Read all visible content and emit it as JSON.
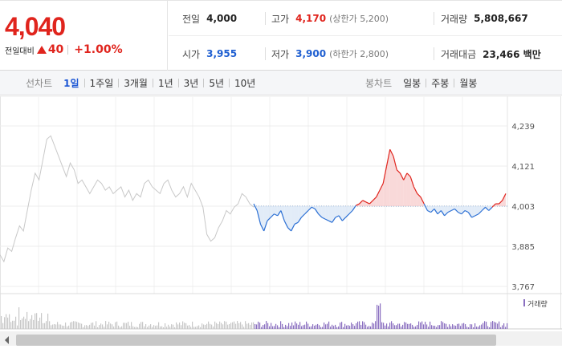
{
  "header": {
    "price": "4,040",
    "change_label": "전일대비",
    "change_value": "40",
    "change_pct": "+1.00%"
  },
  "stats": {
    "prev_close": {
      "label": "전일",
      "value": "4,000"
    },
    "high": {
      "label": "고가",
      "value": "4,170",
      "sub": "(상한가 5,200)"
    },
    "volume": {
      "label": "거래량",
      "value": "5,808,667"
    },
    "open": {
      "label": "시가",
      "value": "3,955"
    },
    "low": {
      "label": "저가",
      "value": "3,900",
      "sub": "(하한가 2,800)"
    },
    "trade_value": {
      "label": "거래대금",
      "value": "23,466 백만"
    }
  },
  "toolbar": {
    "line_chart_title": "선차트",
    "periods": [
      "1일",
      "1주일",
      "3개월",
      "1년",
      "3년",
      "5년",
      "10년"
    ],
    "active_period": "1일",
    "candle_chart_title": "봉차트",
    "candles": [
      "일봉",
      "주봉",
      "월봉"
    ]
  },
  "chart": {
    "y_ticks": [
      "4,239",
      "4,121",
      "4,003",
      "3,885",
      "3,767"
    ],
    "volume_legend": "거래량",
    "colors": {
      "up": "#e0241d",
      "down": "#2b6fd4",
      "prev": "#c8c8c8",
      "volume": "#8a6fc0",
      "baseline": "#7a9cc7"
    }
  },
  "chart_data": {
    "type": "line",
    "title": "",
    "ylim": [
      3767,
      4239
    ],
    "y_ticks": [
      4239,
      4121,
      4003,
      3885,
      3767
    ],
    "baseline": 4003,
    "previous_day": [
      3860,
      3840,
      3880,
      3870,
      3910,
      3945,
      3930,
      3990,
      4050,
      4100,
      4080,
      4140,
      4200,
      4210,
      4180,
      4150,
      4120,
      4090,
      4130,
      4110,
      4070,
      4080,
      4060,
      4040,
      4060,
      4080,
      4070,
      4050,
      4060,
      4040,
      4050,
      4060,
      4030,
      4050,
      4020,
      4040,
      4030,
      4070,
      4080,
      4060,
      4050,
      4040,
      4070,
      4080,
      4050,
      4030,
      4040,
      4060,
      4030,
      4070,
      4050,
      4030,
      4000,
      3920,
      3900,
      3910,
      3940,
      3960,
      3990,
      3980,
      4000,
      4010,
      4040,
      4030,
      4010,
      4000
    ],
    "today": [
      4010,
      3990,
      3950,
      3930,
      3960,
      3970,
      3980,
      3975,
      3990,
      3960,
      3940,
      3930,
      3950,
      3955,
      3970,
      3980,
      3990,
      4000,
      3995,
      3980,
      3970,
      3965,
      3960,
      3955,
      3970,
      3975,
      3960,
      3970,
      3980,
      3990,
      4005,
      4010,
      4020,
      4015,
      4010,
      4020,
      4030,
      4050,
      4070,
      4120,
      4170,
      4150,
      4110,
      4100,
      4080,
      4100,
      4090,
      4060,
      4040,
      4030,
      4010,
      3990,
      3985,
      3995,
      3980,
      3990,
      3975,
      3985,
      3990,
      3995,
      3985,
      3980,
      3990,
      3985,
      3970,
      3975,
      3980,
      3990,
      4000,
      3990,
      4000,
      4010,
      4010,
      4020,
      4040
    ]
  }
}
